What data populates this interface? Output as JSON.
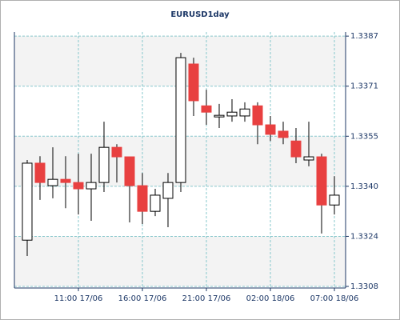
{
  "chart_data": {
    "type": "candlestick",
    "title": "EURUSD1day",
    "categories": [
      null,
      null,
      null,
      null,
      "11:00 17/06",
      null,
      null,
      null,
      null,
      "16:00 17/06",
      null,
      null,
      null,
      null,
      "21:00 17/06",
      null,
      null,
      null,
      null,
      "02:00 18/06",
      null,
      null,
      null,
      null,
      "07:00 18/06"
    ],
    "series": [
      {
        "open": [
          1.33226,
          1.33469,
          1.33398,
          1.33418,
          1.33408,
          1.33388,
          1.33408,
          1.33519,
          1.33489,
          1.33398,
          1.33317,
          1.33358,
          1.33408,
          1.33782,
          1.3365,
          1.33615,
          1.33618,
          1.33618,
          1.3365,
          1.3359,
          1.3357,
          1.33539,
          1.33479,
          1.33489,
          1.33337
        ],
        "high": [
          1.33479,
          1.33491,
          1.33519,
          1.33491,
          1.33499,
          1.33499,
          1.336,
          1.33529,
          1.33489,
          1.33438,
          1.33388,
          1.33438,
          1.33817,
          1.33802,
          1.33701,
          1.33656,
          1.33671,
          1.33661,
          1.33661,
          1.33618,
          1.336,
          1.3358,
          1.336,
          1.33499,
          1.33428
        ],
        "low": [
          1.33176,
          1.33353,
          1.33358,
          1.33327,
          1.33307,
          1.33287,
          1.33378,
          1.33408,
          1.33282,
          1.33277,
          1.33302,
          1.33267,
          1.33378,
          1.33618,
          1.3359,
          1.3358,
          1.336,
          1.336,
          1.33529,
          1.33539,
          1.33529,
          1.33469,
          1.33459,
          1.33247,
          1.33307
        ],
        "close": [
          1.33469,
          1.33408,
          1.33418,
          1.33408,
          1.33388,
          1.33408,
          1.33519,
          1.33489,
          1.33398,
          1.33317,
          1.33368,
          1.33408,
          1.33802,
          1.33666,
          1.3363,
          1.3362,
          1.3363,
          1.3364,
          1.3359,
          1.3356,
          1.3355,
          1.33489,
          1.33489,
          1.33337,
          1.33368
        ]
      }
    ],
    "up_color": "#ffffff",
    "down_color": "#e84040",
    "ylim": [
      1.33075,
      1.33883
    ],
    "yticks": [
      {
        "value": 1.3308,
        "label": "1.3308"
      },
      {
        "value": 1.33238,
        "label": "1.3324"
      },
      {
        "value": 1.33396,
        "label": "1.3340"
      },
      {
        "value": 1.33554,
        "label": "1.3355"
      },
      {
        "value": 1.33712,
        "label": "1.3371"
      },
      {
        "value": 1.3387,
        "label": "1.3387"
      }
    ],
    "grid": true
  }
}
